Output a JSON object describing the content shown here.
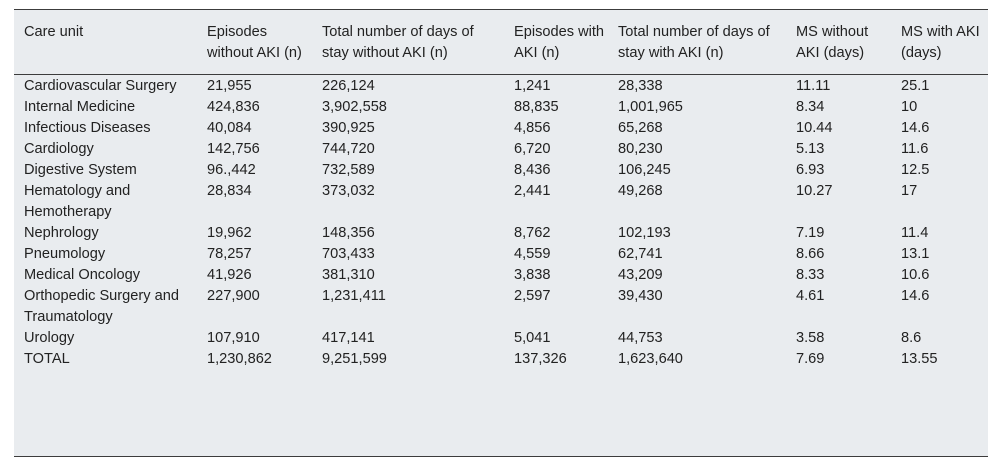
{
  "table": {
    "headers": [
      "Care unit",
      "Episodes without AKI (n)",
      "Total number of days of stay without AKI (n)",
      "Episodes with AKI (n)",
      "Total number of days of stay with AKI (n)",
      "MS without AKI (days)",
      "MS with AKI (days)"
    ],
    "rows": [
      [
        "Cardiovascular Surgery",
        "21,955",
        "226,124",
        "1,241",
        "28,338",
        "11.11",
        "25.1"
      ],
      [
        "Internal Medicine",
        "424,836",
        "3,902,558",
        "88,835",
        "1,001,965",
        "8.34",
        "10"
      ],
      [
        "Infectious Diseases",
        "40,084",
        "390,925",
        "4,856",
        "65,268",
        "10.44",
        "14.6"
      ],
      [
        "Cardiology",
        "142,756",
        "744,720",
        "6,720",
        "80,230",
        "5.13",
        "11.6"
      ],
      [
        "Digestive System",
        "96.,442",
        "732,589",
        "8,436",
        "106,245",
        "6.93",
        "12.5"
      ],
      [
        "Hematology and Hemotherapy",
        "28,834",
        "373,032",
        "2,441",
        "49,268",
        "10.27",
        "17"
      ],
      [
        "Nephrology",
        "19,962",
        "148,356",
        "8,762",
        "102,193",
        "7.19",
        "11.4"
      ],
      [
        "Pneumology",
        "78,257",
        "703,433",
        "4,559",
        "62,741",
        "8.66",
        "13.1"
      ],
      [
        "Medical Oncology",
        "41,926",
        "381,310",
        "3,838",
        "43,209",
        "8.33",
        "10.6"
      ],
      [
        "Orthopedic Surgery and Traumatology",
        "227,900",
        "1,231,411",
        "2,597",
        "39,430",
        "4.61",
        "14.6"
      ],
      [
        "Urology",
        "107,910",
        "417,141",
        "5,041",
        "44,753",
        "3.58",
        "8.6"
      ],
      [
        "TOTAL",
        "1,230,862",
        "9,251,599",
        "137,326",
        "1,623,640",
        "7.69",
        "13.55"
      ]
    ]
  }
}
